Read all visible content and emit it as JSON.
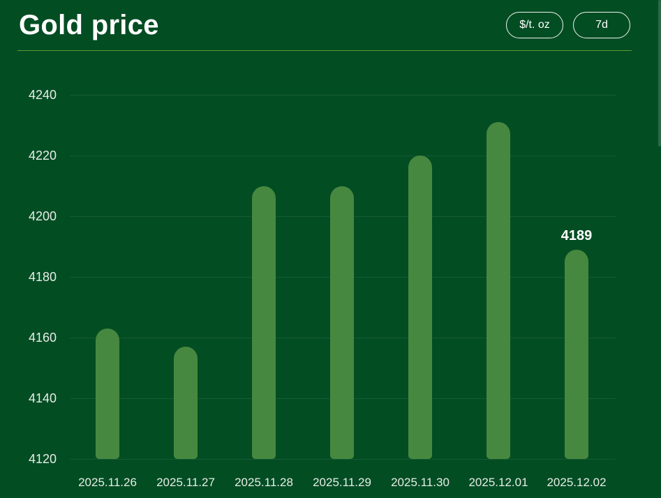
{
  "header": {
    "title": "Gold price",
    "buttons": [
      {
        "label": "$/t. oz"
      },
      {
        "label": "7d"
      }
    ]
  },
  "colors": {
    "background": "#034D23",
    "bar": "#478840",
    "divider": "#5E9633",
    "title_text": "#FFFFFF",
    "axis_text": "#E6EDE6",
    "annotation_text": "#FFFFFF"
  },
  "chart_data": {
    "type": "bar",
    "title": "Gold price",
    "unit": "$/t. oz",
    "range": "7d",
    "categories": [
      "2025.11.26",
      "2025.11.27",
      "2025.11.28",
      "2025.11.29",
      "2025.11.30",
      "2025.12.01",
      "2025.12.02"
    ],
    "values": [
      4163,
      4157,
      4210,
      4210,
      4220,
      4231,
      4189
    ],
    "xlabel": "",
    "ylabel": "",
    "ylim": [
      4120,
      4240
    ],
    "yticks": [
      4240,
      4220,
      4200,
      4180,
      4160,
      4140,
      4120
    ],
    "grid": true,
    "legend": false,
    "annotation": {
      "category_index": 6,
      "text": "4189"
    }
  }
}
